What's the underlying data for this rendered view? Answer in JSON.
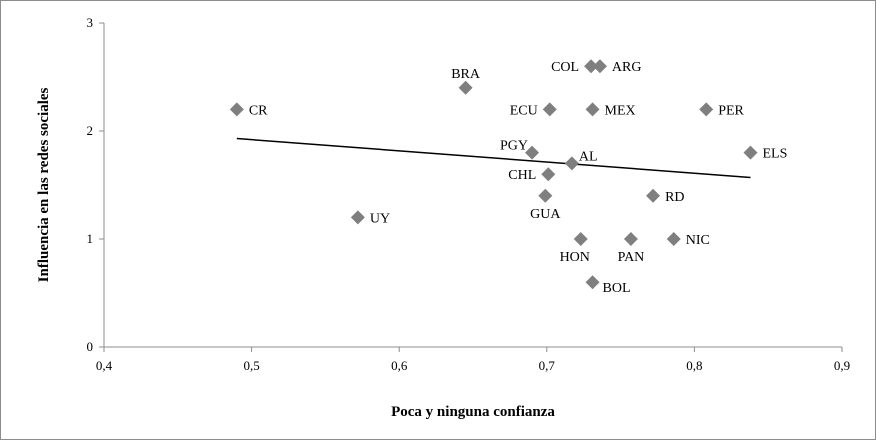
{
  "chart_data": {
    "type": "scatter",
    "xlabel": "Poca y ninguna confianza",
    "ylabel": "Influencia en las redes sociales",
    "xlim": [
      0.4,
      0.9
    ],
    "ylim": [
      0,
      3
    ],
    "x_ticks": [
      "0,4",
      "0,5",
      "0,6",
      "0,7",
      "0,8",
      "0,9"
    ],
    "y_ticks": [
      "0",
      "1",
      "2",
      "3"
    ],
    "grid": false,
    "legend": "none",
    "marker_color": "#7f7f7f",
    "trendline": {
      "x": [
        0.49,
        0.838
      ],
      "y": [
        1.93,
        1.57
      ],
      "color": "#000000"
    },
    "points": [
      {
        "label": "CR",
        "x": 0.49,
        "y": 2.2,
        "pos": "right"
      },
      {
        "label": "BRA",
        "x": 0.645,
        "y": 2.4,
        "pos": "above"
      },
      {
        "label": "COL",
        "x": 0.73,
        "y": 2.6,
        "pos": "left"
      },
      {
        "label": "ARG",
        "x": 0.736,
        "y": 2.6,
        "pos": "right"
      },
      {
        "label": "ECU",
        "x": 0.702,
        "y": 2.2,
        "pos": "left"
      },
      {
        "label": "MEX",
        "x": 0.731,
        "y": 2.2,
        "pos": "right"
      },
      {
        "label": "PER",
        "x": 0.808,
        "y": 2.2,
        "pos": "right"
      },
      {
        "label": "PGY",
        "x": 0.69,
        "y": 1.8,
        "pos": "left-up"
      },
      {
        "label": "AL",
        "x": 0.717,
        "y": 1.7,
        "pos": "right-up"
      },
      {
        "label": "ELS",
        "x": 0.838,
        "y": 1.8,
        "pos": "right"
      },
      {
        "label": "CHL",
        "x": 0.701,
        "y": 1.6,
        "pos": "left"
      },
      {
        "label": "RD",
        "x": 0.772,
        "y": 1.4,
        "pos": "right"
      },
      {
        "label": "GUA",
        "x": 0.699,
        "y": 1.4,
        "pos": "below"
      },
      {
        "label": "UY",
        "x": 0.572,
        "y": 1.2,
        "pos": "right"
      },
      {
        "label": "HON",
        "x": 0.723,
        "y": 1.0,
        "pos": "below-left"
      },
      {
        "label": "PAN",
        "x": 0.757,
        "y": 1.0,
        "pos": "below"
      },
      {
        "label": "NIC",
        "x": 0.786,
        "y": 1.0,
        "pos": "right"
      },
      {
        "label": "BOL",
        "x": 0.731,
        "y": 0.6,
        "pos": "right-down"
      }
    ]
  }
}
